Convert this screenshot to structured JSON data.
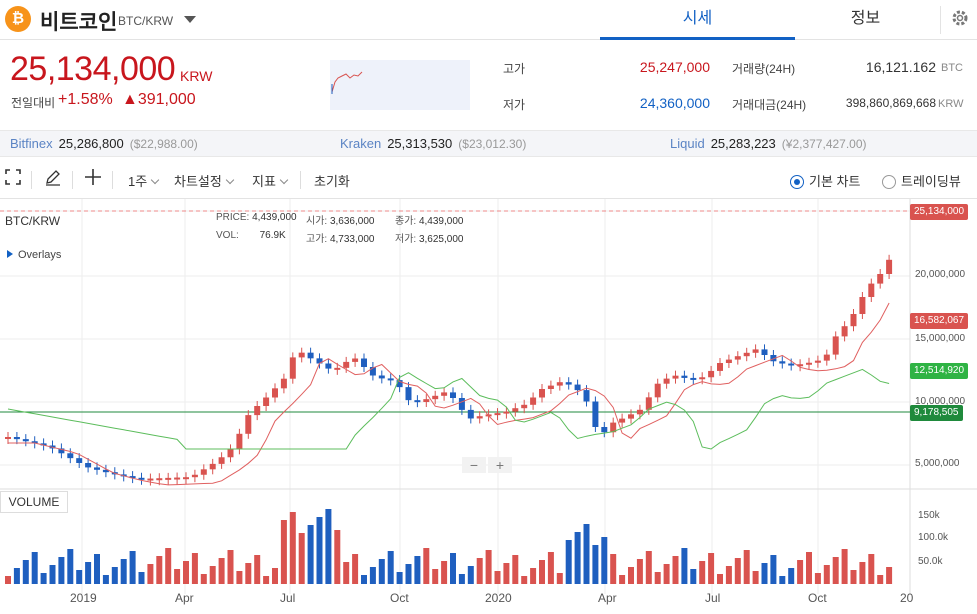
{
  "header": {
    "coin_name": "비트코인",
    "pair": "BTC/KRW",
    "logo_glyph": "₿",
    "tabs": [
      {
        "label": "시세",
        "active": true
      },
      {
        "label": "정보",
        "active": false
      }
    ]
  },
  "price": {
    "current": "25,134,000",
    "unit": "KRW",
    "change_label": "전일대비",
    "change_pct": "+1.58%",
    "change_amt": "▲391,000",
    "high_label": "고가",
    "high": "25,247,000",
    "low_label": "저가",
    "low": "24,360,000",
    "vol24_label": "거래량(24H)",
    "vol24": "16,121.162",
    "vol24_unit": "BTC",
    "amt24_label": "거래대금(24H)",
    "amt24": "398,860,869,668",
    "amt24_unit": "KRW"
  },
  "exchanges": [
    {
      "name": "Bitfinex",
      "krw": "25,286,800",
      "usd": "($22,988.00)"
    },
    {
      "name": "Kraken",
      "krw": "25,313,530",
      "usd": "($23,012.30)"
    },
    {
      "name": "Liquid",
      "krw": "25,283,223",
      "usd": "(¥2,377,427.00)"
    }
  ],
  "toolbar": {
    "period": "1주",
    "chart_settings": "차트설정",
    "indicators": "지표",
    "reset": "초기화",
    "basic_chart": "기본 차트",
    "trading_view": "트레이딩뷰"
  },
  "chart_info": {
    "symbol": "BTC/KRW",
    "overlays": "Overlays",
    "price_l": "PRICE:",
    "price_v": "4,439,000",
    "vol_l": "VOL:",
    "vol_v": "76.9K",
    "open_l": "시가:",
    "open_v": "3,636,000",
    "high_l": "고가:",
    "high_v": "4,733,000",
    "close_l": "종가:",
    "close_v": "4,439,000",
    "low_l": "저가:",
    "low_v": "3,625,000",
    "volume_label": "VOLUME"
  },
  "chart_data": {
    "type": "candlestick",
    "price_axis": [
      "20,000,000",
      "15,000,000",
      "10,000,000",
      "5,000,000"
    ],
    "volume_axis": [
      "150k",
      "100.0k",
      "50.0k"
    ],
    "x_labels": [
      "2019",
      "Apr",
      "Jul",
      "Oct",
      "2020",
      "Apr",
      "Jul",
      "Oct",
      "20"
    ],
    "tags": [
      {
        "label": "25,134,000",
        "color": "#d9534f"
      },
      {
        "label": "16,582,067",
        "color": "#d9534f"
      },
      {
        "label": "12,514,920",
        "color": "#2fb344"
      },
      {
        "label": "9,178,505",
        "color": "#1f8a3c"
      }
    ],
    "colors": {
      "up": "#d9534f",
      "down": "#1f5fbf",
      "ma_short": "#e06060",
      "ma_long": "#5cbd5c",
      "hline": "#1f8a3c"
    }
  }
}
